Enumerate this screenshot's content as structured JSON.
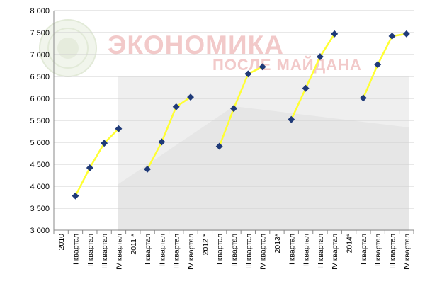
{
  "watermark": {
    "line1": "ЭКОНОМИКА",
    "line2": "ПОСЛЕ МАЙДАНА"
  },
  "colors": {
    "line": "#ffff33",
    "marker": "#1f3a78",
    "grid": "#d0d0d0",
    "axis": "#888888",
    "watermark": "#f2c9c9"
  },
  "chart_data": {
    "type": "line",
    "title": "",
    "xlabel": "",
    "ylabel": "",
    "ylim": [
      3000,
      8000
    ],
    "yticks": [
      "3 000",
      "3 500",
      "4 000",
      "4 500",
      "5 000",
      "5 500",
      "6 000",
      "6 500",
      "7 000",
      "7 500",
      "8 000"
    ],
    "categories": [
      "2010",
      "I квартал",
      "II квартал",
      "III квартал",
      "IV квартал",
      "2011 *",
      "I квартал",
      "II квартал",
      "III квартал",
      "IV квартал",
      "2012 *",
      "I квартал",
      "II квартал",
      "III квартал",
      "IV квартал",
      "2013*",
      "I квартал",
      "II квартал",
      "III квартал",
      "IV квартал",
      "2014*",
      "I квартал",
      "II квартал",
      "III квартал",
      "IV квартал"
    ],
    "series": [
      {
        "values": [
          null,
          3780,
          4420,
          4980,
          5310,
          null,
          4390,
          5010,
          5810,
          6030,
          null,
          4910,
          5770,
          6560,
          6720,
          null,
          5520,
          6230,
          6950,
          7470,
          null,
          6010,
          6770,
          7420,
          7470
        ]
      }
    ],
    "grid": true,
    "legend": "none"
  }
}
